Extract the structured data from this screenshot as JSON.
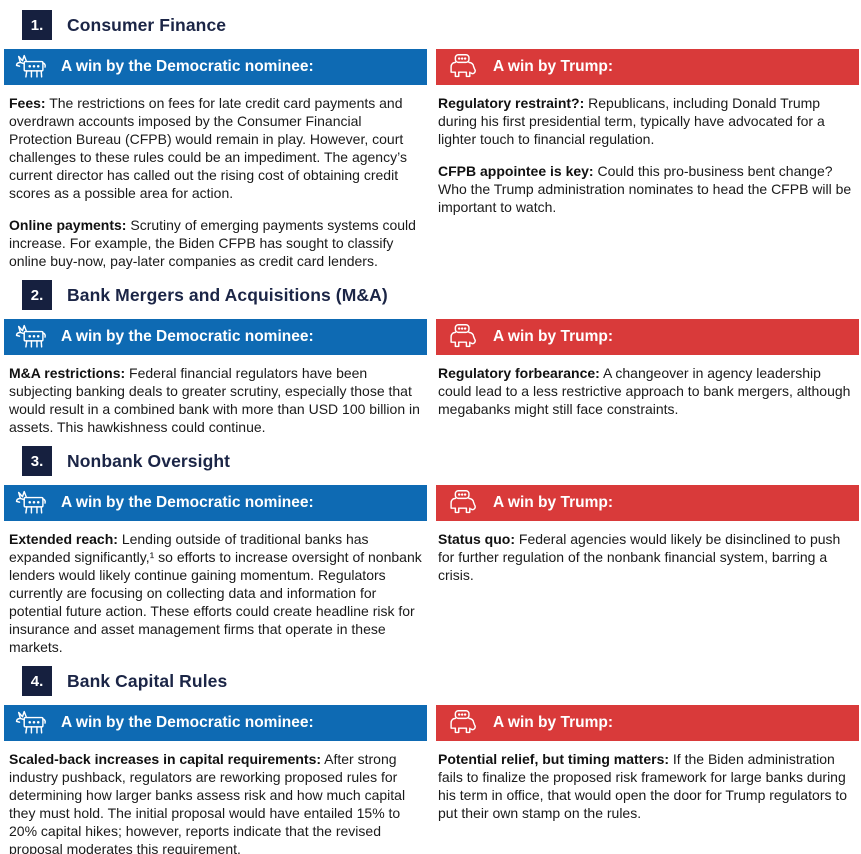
{
  "headers": {
    "democratic_label": "A win by the Democratic nominee:",
    "trump_label": "A win by Trump:"
  },
  "icons": {
    "democratic": "donkey-icon",
    "republican": "elephant-icon"
  },
  "colors": {
    "democratic_blue": "#0e6ab3",
    "republican_red": "#d93a3a",
    "badge_navy": "#16203f",
    "title_navy": "#1b2546",
    "body_text": "#1a1a1a"
  },
  "sections": [
    {
      "number": "1.",
      "title": "Consumer Finance",
      "democratic": [
        {
          "lead": "Fees:",
          "text": " The restrictions on fees for late credit card payments and overdrawn accounts imposed by the Consumer Financial Protection Bureau (CFPB) would remain in play. However, court challenges to these rules could be an impediment. The agency’s current director has called out the rising cost of obtaining credit scores as a possible area for action."
        },
        {
          "lead": "Online payments:",
          "text": " Scrutiny of emerging payments systems could increase. For example, the Biden CFPB has sought to classify online buy-now, pay-later companies as credit card lenders."
        }
      ],
      "trump": [
        {
          "lead": "Regulatory restraint?:",
          "text": " Republicans, including Donald Trump during his first presidential term, typically have advocated for a lighter touch to financial regulation."
        },
        {
          "lead": "CFPB appointee is key:",
          "text": " Could this pro-business bent change? Who the Trump administration nominates to head the CFPB will be important to watch."
        }
      ]
    },
    {
      "number": "2.",
      "title": "Bank Mergers and Acquisitions (M&A)",
      "democratic": [
        {
          "lead": "M&A restrictions:",
          "text": " Federal financial regulators have been subjecting banking deals to greater scrutiny, especially those that would result in a combined bank with more than USD 100 billion in assets. This hawkishness could continue."
        }
      ],
      "trump": [
        {
          "lead": "Regulatory forbearance:",
          "text": " A changeover in agency leadership could lead to a less restrictive approach to bank mergers, although megabanks might still face constraints."
        }
      ]
    },
    {
      "number": "3.",
      "title": "Nonbank Oversight",
      "democratic": [
        {
          "lead": "Extended reach:",
          "text": " Lending outside of traditional banks has expanded significantly,¹ so efforts to increase oversight of nonbank lenders would likely continue gaining momentum. Regulators currently are focusing on collecting data and information for potential future action. These efforts could create headline risk for insurance and asset management firms that operate in these markets."
        }
      ],
      "trump": [
        {
          "lead": "Status quo:",
          "text": " Federal agencies would likely be disinclined to push for further regulation of the nonbank financial system, barring a crisis."
        }
      ]
    },
    {
      "number": "4.",
      "title": "Bank Capital Rules",
      "democratic": [
        {
          "lead": "Scaled-back increases in capital requirements:",
          "text": " After strong industry pushback, regulators are reworking proposed rules for determining how larger banks assess risk and how much capital they must hold. The initial proposal would have entailed 15% to 20% capital hikes; however, reports indicate that the revised proposal moderates this requirement."
        }
      ],
      "trump": [
        {
          "lead": "Potential relief, but timing matters:",
          "text": " If the Biden administration fails to finalize the proposed risk framework for large banks during his term in office, that would open the door for Trump regulators to put their own stamp on the rules."
        }
      ]
    }
  ]
}
